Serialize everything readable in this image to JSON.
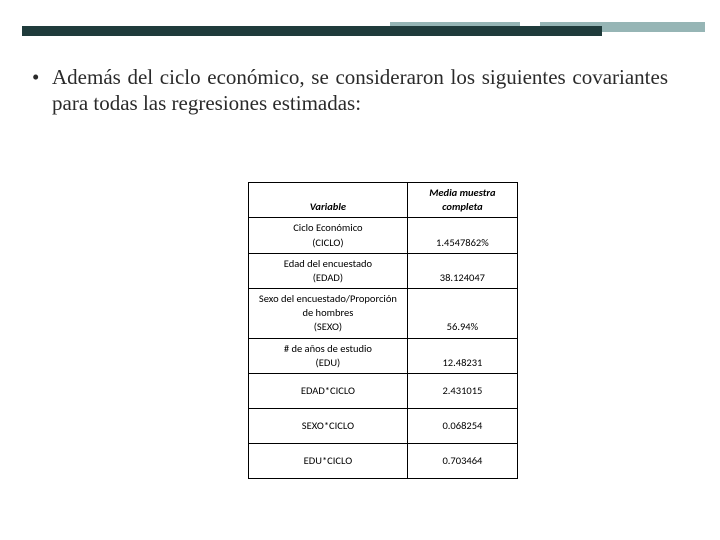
{
  "colors": {
    "bar_dark": "#1f3b3b",
    "bar_light": "#96b5b5",
    "text": "#2a2a2a",
    "table_border": "#000000",
    "background": "#ffffff"
  },
  "bullet": "Además del ciclo económico, se consideraron los siguientes covariantes para todas las regresiones estimadas:",
  "table": {
    "type": "table",
    "header": {
      "variable": "Variable",
      "mean": "Media muestra completa"
    },
    "rows": [
      {
        "label_lines": [
          "Ciclo Económico",
          "(CICLO)"
        ],
        "value": "1.4547862%"
      },
      {
        "label_lines": [
          "Edad del encuestado",
          "(EDAD)"
        ],
        "value": "38.124047"
      },
      {
        "label_lines": [
          "Sexo del encuestado/Proporción",
          "de hombres",
          "(SEXO)"
        ],
        "value": "56.94%"
      },
      {
        "label_lines": [
          "# de años de estudio",
          "(EDU)"
        ],
        "value": "12.48231"
      },
      {
        "label_lines": [
          "EDAD*CICLO"
        ],
        "value": "2.431015",
        "interaction": true
      },
      {
        "label_lines": [
          "SEXO*CICLO"
        ],
        "value": "0.068254",
        "interaction": true
      },
      {
        "label_lines": [
          "EDU*CICLO"
        ],
        "value": "0.703464",
        "interaction": true
      }
    ]
  }
}
